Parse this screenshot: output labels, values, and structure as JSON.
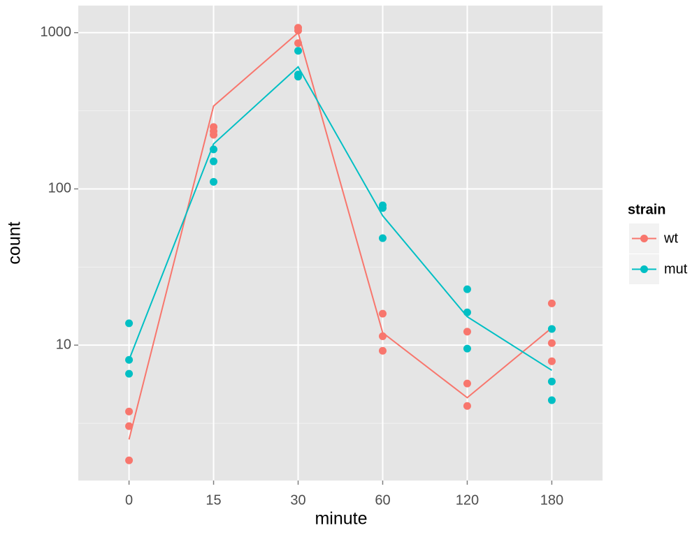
{
  "chart_data": {
    "type": "line",
    "x_label": "minute",
    "y_label": "count",
    "categories": [
      "0",
      "15",
      "30",
      "60",
      "120",
      "180"
    ],
    "log_y": true,
    "ylim": [
      1.36,
      1490
    ],
    "yticks": [
      10,
      100,
      1000
    ],
    "yminor": [
      3.16,
      31.6,
      316
    ],
    "grid": true,
    "legend_title": "strain",
    "legend_position": "right",
    "series": [
      {
        "name": "wt",
        "color": "#f8766d",
        "values": [
          2.49,
          339,
          1000,
          12.0,
          4.61,
          12.9
        ],
        "points": [
          [
            3.76,
            3.03,
            1.83
          ],
          [
            249,
            234,
            222
          ],
          [
            1075,
            1031,
            857
          ],
          [
            15.9,
            11.4,
            9.2
          ],
          [
            12.2,
            5.68,
            4.08
          ],
          [
            18.5,
            10.3,
            7.89
          ]
        ]
      },
      {
        "name": "mut",
        "color": "#00bfc4",
        "values": [
          8.05,
          194,
          604,
          67.3,
          15.2,
          6.9
        ],
        "points": [
          [
            13.8,
            8.05,
            6.56
          ],
          [
            179,
            150,
            111
          ],
          [
            765,
            540,
            523
          ],
          [
            78.5,
            75.4,
            48.4
          ],
          [
            22.8,
            16.2,
            9.5
          ],
          [
            12.7,
            5.85,
            4.44
          ]
        ]
      }
    ]
  }
}
